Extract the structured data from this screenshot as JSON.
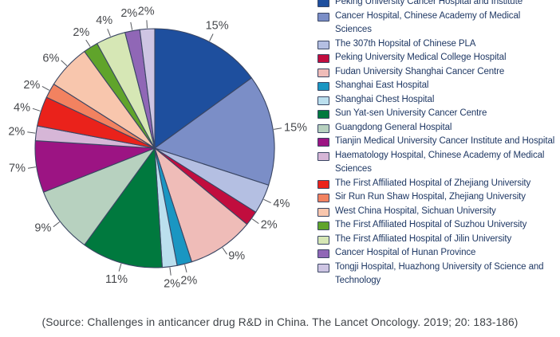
{
  "figure": {
    "source_citation": "(Source: Challenges in anticancer drug R&D in China. The Lancet Oncology. 2019; 20: 183-186)"
  },
  "chart_data": {
    "type": "pie",
    "title": "",
    "unit": "percent",
    "start_angle_deg": 0,
    "direction": "clockwise",
    "legend_position": "right",
    "slices": [
      {
        "label": "Peking University Cancer Hospital and Institute",
        "value": 15,
        "pct_label": "15%",
        "color": "#1e4f9e"
      },
      {
        "label": "Cancer Hospital, Chinese Academy of Medical Sciences",
        "value": 15,
        "pct_label": "15%",
        "color": "#7b8ec7"
      },
      {
        "label": "The 307th Hopsital of Chinese PLA",
        "value": 4,
        "pct_label": "4%",
        "color": "#b4bfe2"
      },
      {
        "label": "Peking University Medical College Hospital",
        "value": 2,
        "pct_label": "2%",
        "color": "#c10d3e"
      },
      {
        "label": "Fudan University Shanghai Cancer Centre",
        "value": 9,
        "pct_label": "9%",
        "color": "#efbcb8"
      },
      {
        "label": "Shanghai East Hospital",
        "value": 2,
        "pct_label": "2%",
        "color": "#1a96c2"
      },
      {
        "label": "Shanghai Chest Hospital",
        "value": 2,
        "pct_label": "2%",
        "color": "#bbdfee"
      },
      {
        "label": "Sun Yat-sen University Cancer Centre",
        "value": 11,
        "pct_label": "11%",
        "color": "#00793e"
      },
      {
        "label": "Guangdong General Hospital",
        "value": 9,
        "pct_label": "9%",
        "color": "#b7d1bf"
      },
      {
        "label": "Tianjin Medical University Cancer Institute and Hospital",
        "value": 7,
        "pct_label": "7%",
        "color": "#9c1483"
      },
      {
        "label": "Haematology Hospital, Chinese Academy of Medical Sciences",
        "value": 2,
        "pct_label": "2%",
        "color": "#d6b6d7"
      },
      {
        "label": "The First Affiliated Hospital of Zhejiang University",
        "value": 4,
        "pct_label": "4%",
        "color": "#ea221b"
      },
      {
        "label": "Sir Run Run Shaw Hospital, Zhejiang University",
        "value": 2,
        "pct_label": "2%",
        "color": "#f28260"
      },
      {
        "label": "West China Hospital, Sichuan University",
        "value": 6,
        "pct_label": "6%",
        "color": "#f8c6ad"
      },
      {
        "label": "The First Affiliated Hospital of Suzhou University",
        "value": 2,
        "pct_label": "2%",
        "color": "#60a42b"
      },
      {
        "label": "The First Affiliated Hospital of Jilin University",
        "value": 4,
        "pct_label": "4%",
        "color": "#d6e7b5"
      },
      {
        "label": "Cancer Hospital of Hunan Province",
        "value": 2,
        "pct_label": "2%",
        "color": "#9067b6"
      },
      {
        "label": "Tongji Hospital, Huazhong University of Science and Technology",
        "value": 2,
        "pct_label": "2%",
        "color": "#cec5e3"
      }
    ]
  }
}
